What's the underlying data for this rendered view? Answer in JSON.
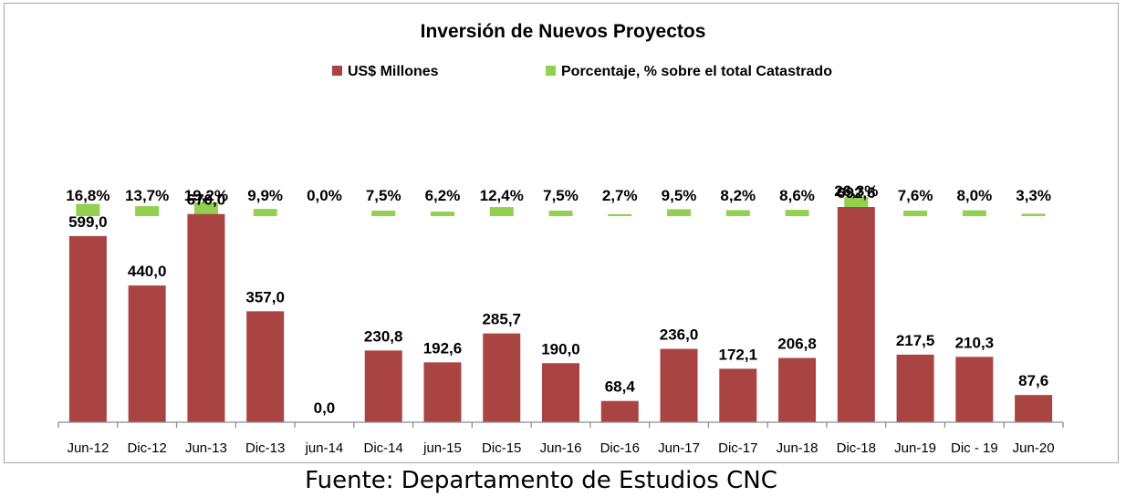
{
  "chart_data": {
    "type": "bar",
    "title": "Inversión de Nuevos Proyectos",
    "categories": [
      "Jun-12",
      "Dic-12",
      "Jun-13",
      "Dic-13",
      "jun-14",
      "Dic-14",
      "jun-15",
      "Dic-15",
      "Jun-16",
      "Dic-16",
      "Jun-17",
      "Dic-17",
      "Jun-18",
      "Dic-18",
      "Jun-19",
      "Dic - 19",
      "Jun-20"
    ],
    "series": [
      {
        "name": "US$ Millones",
        "color": "#a94442",
        "values": [
          599.0,
          440.0,
          670.0,
          357.0,
          0.0,
          230.8,
          192.6,
          285.7,
          190.0,
          68.4,
          236.0,
          172.1,
          206.8,
          692.6,
          217.5,
          210.3,
          87.6
        ],
        "labels": [
          "599,0",
          "440,0",
          "670,0",
          "357,0",
          "0,0",
          "230,8",
          "192,6",
          "285,7",
          "190,0",
          "68,4",
          "236,0",
          "172,1",
          "206,8",
          "692,6",
          "217,5",
          "210,3",
          "87,6"
        ]
      },
      {
        "name": "Porcentaje, % sobre el total Catastrado",
        "color": "#92d050",
        "values": [
          16.8,
          13.7,
          19.2,
          9.9,
          0.0,
          7.5,
          6.2,
          12.4,
          7.5,
          2.7,
          9.5,
          8.2,
          8.6,
          26.3,
          7.6,
          8.0,
          3.3
        ],
        "labels": [
          "16,8%",
          "13,7%",
          "19,2%",
          "9,9%",
          "0,0%",
          "7,5%",
          "6,2%",
          "12,4%",
          "7,5%",
          "2,7%",
          "9,5%",
          "8,2%",
          "8,6%",
          "26,3%",
          "7,6%",
          "8,0%",
          "3,3%"
        ]
      }
    ],
    "legend_position": "top",
    "grid": false
  },
  "source": "Fuente: Departamento de Estudios CNC"
}
